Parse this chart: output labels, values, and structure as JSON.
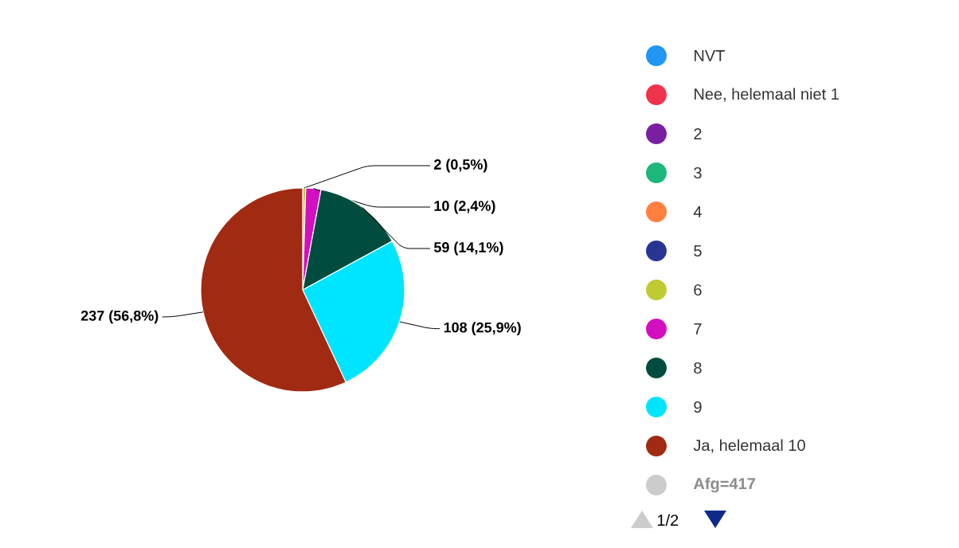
{
  "chart_data": {
    "type": "pie",
    "categories": [
      "NVT",
      "Nee, helemaal niet 1",
      "2",
      "3",
      "4",
      "5",
      "6",
      "7",
      "8",
      "9",
      "Ja, helemaal 10"
    ],
    "values": [
      0,
      0,
      0,
      0,
      0,
      0,
      2,
      10,
      59,
      108,
      237
    ],
    "colors": [
      "#2196f3",
      "#f0334d",
      "#7b1fa2",
      "#1bb77b",
      "#ff7f3f",
      "#283593",
      "#c0ca33",
      "#d40fbf",
      "#004d40",
      "#00e5ff",
      "#a12a12"
    ],
    "value_labels": [
      null,
      null,
      null,
      null,
      null,
      null,
      "2 (0,5%)",
      "10 (2,4%)",
      "59 (14,1%)",
      "108 (25,9%)",
      "237 (56,8%)"
    ],
    "legend": "right",
    "annotations": [
      "Afg=417",
      "1/2"
    ]
  }
}
